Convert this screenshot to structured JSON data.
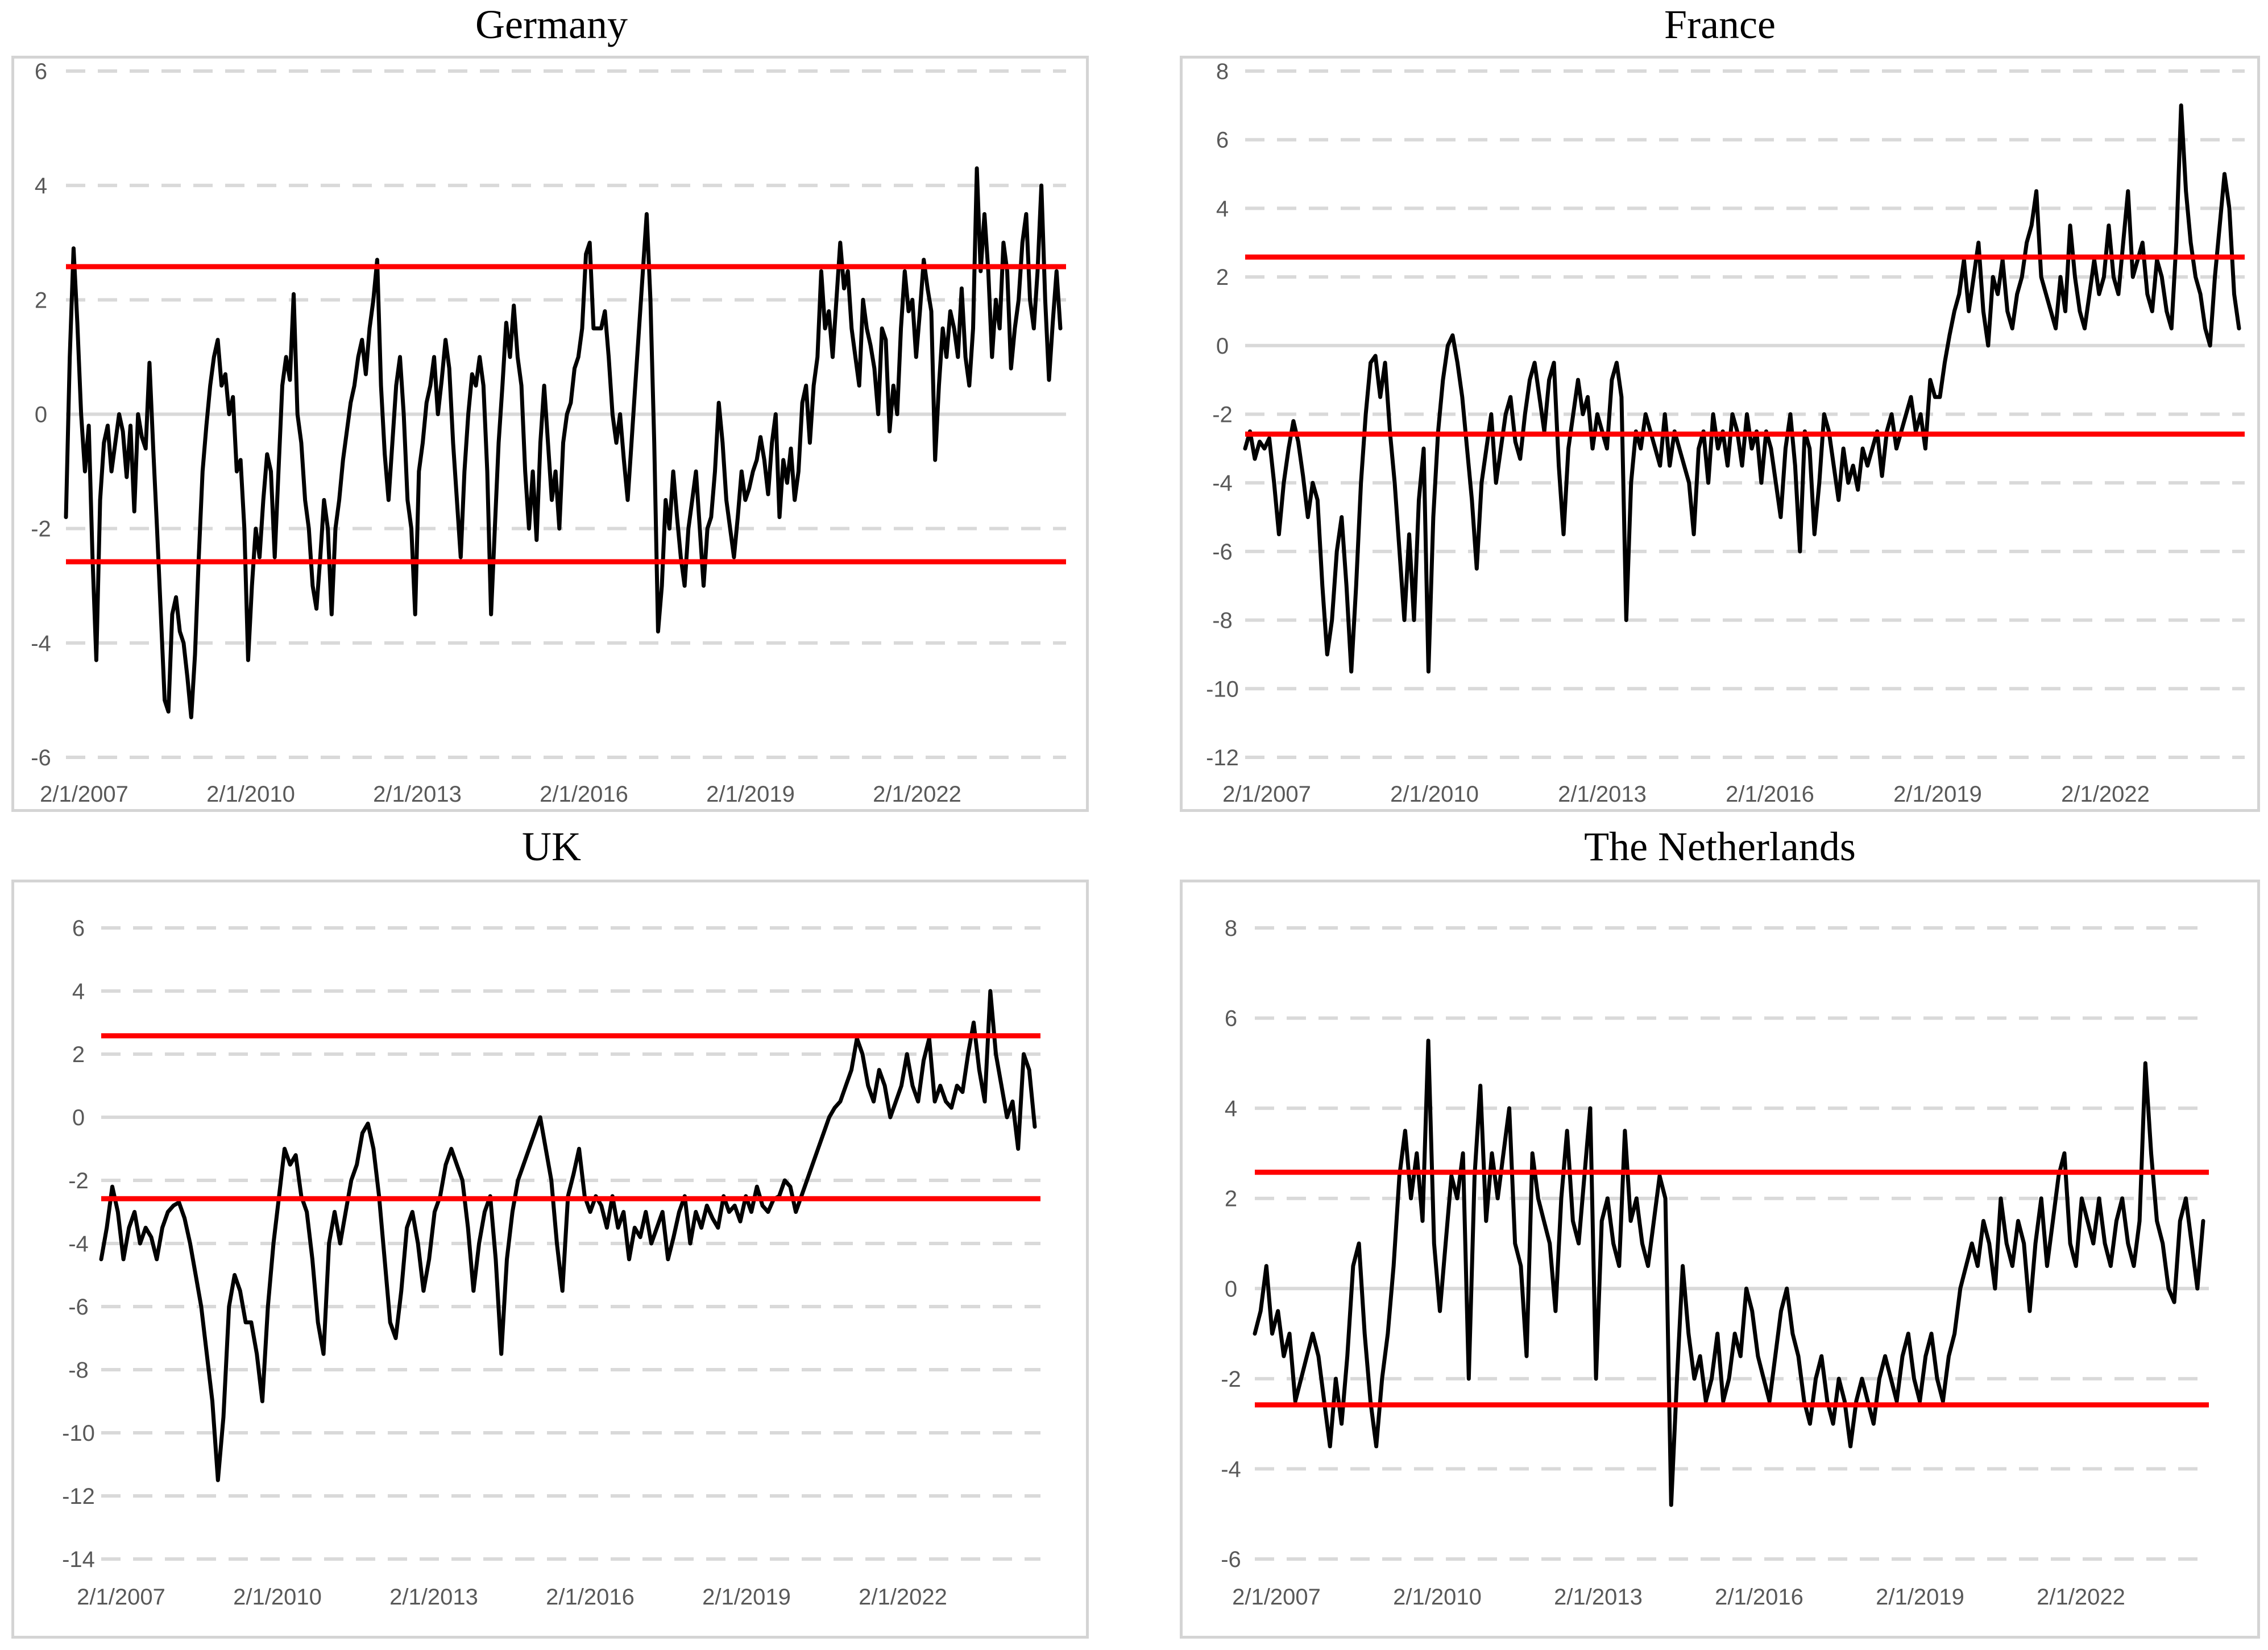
{
  "chart_data": [
    {
      "type": "line",
      "title": "Germany",
      "xlabel": "",
      "ylabel": "",
      "x_ticks": [
        "2/1/2007",
        "2/1/2010",
        "2/1/2013",
        "2/1/2016",
        "2/1/2019",
        "2/1/2022"
      ],
      "x_range": [
        "2007-01-02",
        "2025-07-01"
      ],
      "y_ticks": [
        6,
        4,
        2,
        0,
        -2,
        -4,
        -6
      ],
      "ylim": [
        -6,
        6
      ],
      "grid": true,
      "legend": "none",
      "reference_lines": [
        2.58,
        -2.58
      ],
      "colors": {
        "series": "#000000",
        "reference": "#ff0000",
        "grid": "#d9d9d9"
      },
      "series": [
        {
          "values": [
            -1.8,
            1.0,
            2.9,
            1.6,
            0.0,
            -1.0,
            -0.2,
            -2.5,
            -4.3,
            -1.5,
            -0.5,
            -0.2,
            -1.0,
            -0.5,
            0.0,
            -0.3,
            -1.1,
            -0.2,
            -1.7,
            0.0,
            -0.4,
            -0.6,
            0.9,
            -0.6,
            -2.0,
            -3.5,
            -5.0,
            -5.2,
            -3.5,
            -3.2,
            -3.8,
            -4.0,
            -4.6,
            -5.3,
            -4.2,
            -2.5,
            -1.0,
            -0.2,
            0.5,
            1.0,
            1.3,
            0.5,
            0.7,
            0.0,
            0.3,
            -1.0,
            -0.8,
            -2.0,
            -4.3,
            -3.0,
            -2.0,
            -2.5,
            -1.5,
            -0.7,
            -1.0,
            -2.5,
            -1.0,
            0.5,
            1.0,
            0.6,
            2.1,
            0.0,
            -0.5,
            -1.5,
            -2.0,
            -3.0,
            -3.4,
            -2.5,
            -1.5,
            -2.0,
            -3.5,
            -2.0,
            -1.5,
            -0.8,
            -0.3,
            0.2,
            0.5,
            1.0,
            1.3,
            0.7,
            1.5,
            2.0,
            2.7,
            0.5,
            -0.7,
            -1.5,
            -0.5,
            0.5,
            1.0,
            0.0,
            -1.5,
            -2.0,
            -3.5,
            -1.0,
            -0.5,
            0.2,
            0.5,
            1.0,
            0.0,
            0.6,
            1.3,
            0.8,
            -0.5,
            -1.5,
            -2.5,
            -1.0,
            0.0,
            0.7,
            0.5,
            1.0,
            0.5,
            -1.0,
            -3.5,
            -2.0,
            -0.5,
            0.5,
            1.6,
            1.0,
            1.9,
            1.0,
            0.5,
            -1.0,
            -2.0,
            -1.0,
            -2.2,
            -0.5,
            0.5,
            -0.5,
            -1.5,
            -1.0,
            -2.0,
            -0.5,
            0.0,
            0.2,
            0.8,
            1.0,
            1.5,
            2.8,
            3.0,
            1.5,
            1.5,
            1.5,
            1.8,
            1.0,
            0.0,
            -0.5,
            0.0,
            -0.8,
            -1.5,
            -0.5,
            0.5,
            1.5,
            2.5,
            3.5,
            2.0,
            -0.5,
            -3.8,
            -3.0,
            -1.5,
            -2.0,
            -1.0,
            -1.8,
            -2.5,
            -3.0,
            -2.0,
            -1.5,
            -1.0,
            -2.0,
            -3.0,
            -2.0,
            -1.8,
            -1.0,
            0.2,
            -0.5,
            -1.5,
            -2.0,
            -2.5,
            -1.8,
            -1.0,
            -1.5,
            -1.3,
            -1.0,
            -0.8,
            -0.4,
            -0.8,
            -1.4,
            -0.5,
            0.0,
            -1.8,
            -0.8,
            -1.2,
            -0.6,
            -1.5,
            -1.0,
            0.2,
            0.5,
            -0.5,
            0.5,
            1.0,
            2.5,
            1.5,
            1.8,
            1.0,
            2.0,
            3.0,
            2.2,
            2.5,
            1.5,
            1.0,
            0.5,
            2.0,
            1.5,
            1.2,
            0.8,
            0.0,
            1.5,
            1.3,
            -0.3,
            0.5,
            0.0,
            1.5,
            2.5,
            1.8,
            2.0,
            1.0,
            1.8,
            2.7,
            2.2,
            1.8,
            -0.8,
            0.5,
            1.5,
            1.0,
            1.8,
            1.5,
            1.0,
            2.2,
            1.0,
            0.5,
            1.5,
            4.3,
            2.5,
            3.5,
            2.5,
            1.0,
            2.0,
            1.5,
            3.0,
            2.5,
            0.8,
            1.5,
            2.0,
            3.0,
            3.5,
            2.0,
            1.5,
            2.5,
            4.0,
            2.0,
            0.6,
            1.6,
            2.5,
            1.5
          ]
        }
      ]
    },
    {
      "type": "line",
      "title": "France",
      "xlabel": "",
      "ylabel": "",
      "x_ticks": [
        "2/1/2007",
        "2/1/2010",
        "2/1/2013",
        "2/1/2016",
        "2/1/2019",
        "2/1/2022"
      ],
      "x_range": [
        "2007-01-02",
        "2025-07-01"
      ],
      "y_ticks": [
        8,
        6,
        4,
        2,
        0,
        -2,
        -4,
        -6,
        -8,
        -10,
        -12
      ],
      "ylim": [
        -12,
        8
      ],
      "grid": true,
      "legend": "none",
      "reference_lines": [
        2.58,
        -2.58
      ],
      "colors": {
        "series": "#000000",
        "reference": "#ff0000",
        "grid": "#d9d9d9"
      },
      "series": [
        {
          "values": [
            -3.0,
            -2.5,
            -3.3,
            -2.8,
            -3.0,
            -2.7,
            -4.0,
            -5.5,
            -4.0,
            -3.0,
            -2.2,
            -2.8,
            -3.8,
            -5.0,
            -4.0,
            -4.5,
            -7.0,
            -9.0,
            -8.0,
            -6.0,
            -5.0,
            -7.0,
            -9.5,
            -7.0,
            -4.0,
            -2.0,
            -0.5,
            -0.3,
            -1.5,
            -0.5,
            -2.5,
            -4.0,
            -6.0,
            -8.0,
            -5.5,
            -8.0,
            -4.5,
            -3.0,
            -9.5,
            -5.0,
            -2.5,
            -1.0,
            0.0,
            0.3,
            -0.5,
            -1.5,
            -3.0,
            -4.5,
            -6.5,
            -4.0,
            -3.0,
            -2.0,
            -4.0,
            -3.0,
            -2.0,
            -1.5,
            -2.8,
            -3.3,
            -2.0,
            -1.0,
            -0.5,
            -1.5,
            -2.5,
            -1.0,
            -0.5,
            -3.5,
            -5.5,
            -3.0,
            -2.0,
            -1.0,
            -2.0,
            -1.5,
            -3.0,
            -2.0,
            -2.5,
            -3.0,
            -1.0,
            -0.5,
            -1.5,
            -8.0,
            -4.0,
            -2.5,
            -3.0,
            -2.0,
            -2.5,
            -3.0,
            -3.5,
            -2.0,
            -3.5,
            -2.5,
            -3.0,
            -3.5,
            -4.0,
            -5.5,
            -3.0,
            -2.5,
            -4.0,
            -2.0,
            -3.0,
            -2.5,
            -3.5,
            -2.0,
            -2.5,
            -3.5,
            -2.0,
            -3.0,
            -2.5,
            -4.0,
            -2.5,
            -3.0,
            -4.0,
            -5.0,
            -3.0,
            -2.0,
            -3.5,
            -6.0,
            -2.5,
            -3.0,
            -5.5,
            -4.0,
            -2.0,
            -2.5,
            -3.5,
            -4.5,
            -3.0,
            -4.0,
            -3.5,
            -4.2,
            -3.0,
            -3.5,
            -3.0,
            -2.5,
            -3.8,
            -2.5,
            -2.0,
            -3.0,
            -2.5,
            -2.0,
            -1.5,
            -2.5,
            -2.0,
            -3.0,
            -1.0,
            -1.5,
            -1.5,
            -0.5,
            0.3,
            1.0,
            1.5,
            2.5,
            1.0,
            2.0,
            3.0,
            1.0,
            0.0,
            2.0,
            1.5,
            2.5,
            1.0,
            0.5,
            1.5,
            2.0,
            3.0,
            3.5,
            4.5,
            2.0,
            1.5,
            1.0,
            0.5,
            2.0,
            1.0,
            3.5,
            2.0,
            1.0,
            0.5,
            1.5,
            2.5,
            1.5,
            2.0,
            3.5,
            2.0,
            1.5,
            3.0,
            4.5,
            2.0,
            2.5,
            3.0,
            1.5,
            1.0,
            2.5,
            2.0,
            1.0,
            0.5,
            3.0,
            7.0,
            4.5,
            3.0,
            2.0,
            1.5,
            0.5,
            0.0,
            2.0,
            3.5,
            5.0,
            4.0,
            1.5,
            0.5
          ]
        }
      ]
    },
    {
      "type": "line",
      "title": "UK",
      "xlabel": "",
      "ylabel": "",
      "x_ticks": [
        "2/1/2007",
        "2/1/2010",
        "2/1/2013",
        "2/1/2016",
        "2/1/2019",
        "2/1/2022"
      ],
      "x_range": [
        "2007-01-02",
        "2025-07-01"
      ],
      "y_ticks": [
        6,
        4,
        2,
        0,
        -2,
        -4,
        -6,
        -8,
        -10,
        -12,
        -14
      ],
      "ylim": [
        -14,
        6
      ],
      "grid": true,
      "legend": "none",
      "reference_lines": [
        2.58,
        -2.58
      ],
      "colors": {
        "series": "#000000",
        "reference": "#ff0000",
        "grid": "#d9d9d9"
      },
      "series": [
        {
          "values": [
            -4.5,
            -3.5,
            -2.2,
            -3.0,
            -4.5,
            -3.5,
            -3.0,
            -4.0,
            -3.5,
            -3.8,
            -4.5,
            -3.5,
            -3.0,
            -2.8,
            -2.7,
            -3.2,
            -4.0,
            -5.0,
            -6.0,
            -7.5,
            -9.0,
            -11.5,
            -9.5,
            -6.0,
            -5.0,
            -5.5,
            -6.5,
            -6.5,
            -7.5,
            -9.0,
            -6.0,
            -4.0,
            -2.5,
            -1.0,
            -1.5,
            -1.2,
            -2.5,
            -3.0,
            -4.5,
            -6.5,
            -7.5,
            -4.0,
            -3.0,
            -4.0,
            -3.0,
            -2.0,
            -1.5,
            -0.5,
            -0.2,
            -1.0,
            -2.5,
            -4.5,
            -6.5,
            -7.0,
            -5.5,
            -3.5,
            -3.0,
            -4.0,
            -5.5,
            -4.5,
            -3.0,
            -2.5,
            -1.5,
            -1.0,
            -1.5,
            -2.0,
            -3.5,
            -5.5,
            -4.0,
            -3.0,
            -2.5,
            -4.5,
            -7.5,
            -4.5,
            -3.0,
            -2.0,
            -1.5,
            -1.0,
            -0.5,
            0.0,
            -1.0,
            -2.0,
            -4.0,
            -5.5,
            -2.5,
            -1.8,
            -1.0,
            -2.5,
            -3.0,
            -2.5,
            -2.8,
            -3.5,
            -2.5,
            -3.5,
            -3.0,
            -4.5,
            -3.5,
            -3.8,
            -3.0,
            -4.0,
            -3.5,
            -3.0,
            -4.5,
            -3.8,
            -3.0,
            -2.5,
            -4.0,
            -3.0,
            -3.5,
            -2.8,
            -3.2,
            -3.5,
            -2.5,
            -3.0,
            -2.8,
            -3.3,
            -2.5,
            -3.0,
            -2.2,
            -2.8,
            -3.0,
            -2.6,
            -2.5,
            -2.0,
            -2.2,
            -3.0,
            -2.5,
            -2.0,
            -1.5,
            -1.0,
            -0.5,
            0.0,
            0.3,
            0.5,
            1.0,
            1.5,
            2.5,
            2.0,
            1.0,
            0.5,
            1.5,
            1.0,
            0.0,
            0.5,
            1.0,
            2.0,
            1.0,
            0.5,
            1.8,
            2.5,
            0.5,
            1.0,
            0.5,
            0.3,
            1.0,
            0.8,
            2.0,
            3.0,
            1.5,
            0.5,
            4.0,
            2.0,
            1.0,
            0.0,
            0.5,
            -1.0,
            2.0,
            1.5,
            -0.3
          ]
        }
      ]
    },
    {
      "type": "line",
      "title": "The Netherlands",
      "xlabel": "",
      "ylabel": "",
      "x_ticks": [
        "2/1/2007",
        "2/1/2010",
        "2/1/2013",
        "2/1/2016",
        "2/1/2019",
        "2/1/2022"
      ],
      "x_range": [
        "2007-01-02",
        "2025-07-01"
      ],
      "y_ticks": [
        8,
        6,
        4,
        2,
        0,
        -2,
        -4,
        -6
      ],
      "ylim": [
        -6,
        8
      ],
      "grid": true,
      "legend": "none",
      "reference_lines": [
        2.58,
        -2.58
      ],
      "colors": {
        "series": "#000000",
        "reference": "#ff0000",
        "grid": "#d9d9d9"
      },
      "series": [
        {
          "values": [
            -1.0,
            -0.5,
            0.5,
            -1.0,
            -0.5,
            -1.5,
            -1.0,
            -2.5,
            -2.0,
            -1.5,
            -1.0,
            -1.5,
            -2.5,
            -3.5,
            -2.0,
            -3.0,
            -1.5,
            0.5,
            1.0,
            -1.0,
            -2.5,
            -3.5,
            -2.0,
            -1.0,
            0.5,
            2.5,
            3.5,
            2.0,
            3.0,
            1.5,
            5.5,
            1.0,
            -0.5,
            1.0,
            2.5,
            2.0,
            3.0,
            -2.0,
            2.5,
            4.5,
            1.5,
            3.0,
            2.0,
            3.0,
            4.0,
            1.0,
            0.5,
            -1.5,
            3.0,
            2.0,
            1.5,
            1.0,
            -0.5,
            2.0,
            3.5,
            1.5,
            1.0,
            2.5,
            4.0,
            -2.0,
            1.5,
            2.0,
            1.0,
            0.5,
            3.5,
            1.5,
            2.0,
            1.0,
            0.5,
            1.5,
            2.5,
            2.0,
            -4.8,
            -2.0,
            0.5,
            -1.0,
            -2.0,
            -1.5,
            -2.5,
            -2.0,
            -1.0,
            -2.5,
            -2.0,
            -1.0,
            -1.5,
            0.0,
            -0.5,
            -1.5,
            -2.0,
            -2.5,
            -1.5,
            -0.5,
            0.0,
            -1.0,
            -1.5,
            -2.5,
            -3.0,
            -2.0,
            -1.5,
            -2.5,
            -3.0,
            -2.0,
            -2.5,
            -3.5,
            -2.5,
            -2.0,
            -2.5,
            -3.0,
            -2.0,
            -1.5,
            -2.0,
            -2.5,
            -1.5,
            -1.0,
            -2.0,
            -2.5,
            -1.5,
            -1.0,
            -2.0,
            -2.5,
            -1.5,
            -1.0,
            0.0,
            0.5,
            1.0,
            0.5,
            1.5,
            1.0,
            0.0,
            2.0,
            1.0,
            0.5,
            1.5,
            1.0,
            -0.5,
            1.0,
            2.0,
            0.5,
            1.5,
            2.5,
            3.0,
            1.0,
            0.5,
            2.0,
            1.5,
            1.0,
            2.0,
            1.0,
            0.5,
            1.5,
            2.0,
            1.0,
            0.5,
            1.5,
            5.0,
            3.0,
            1.5,
            1.0,
            0.0,
            -0.3,
            1.5,
            2.0,
            1.0,
            0.0,
            1.5
          ]
        }
      ]
    }
  ]
}
